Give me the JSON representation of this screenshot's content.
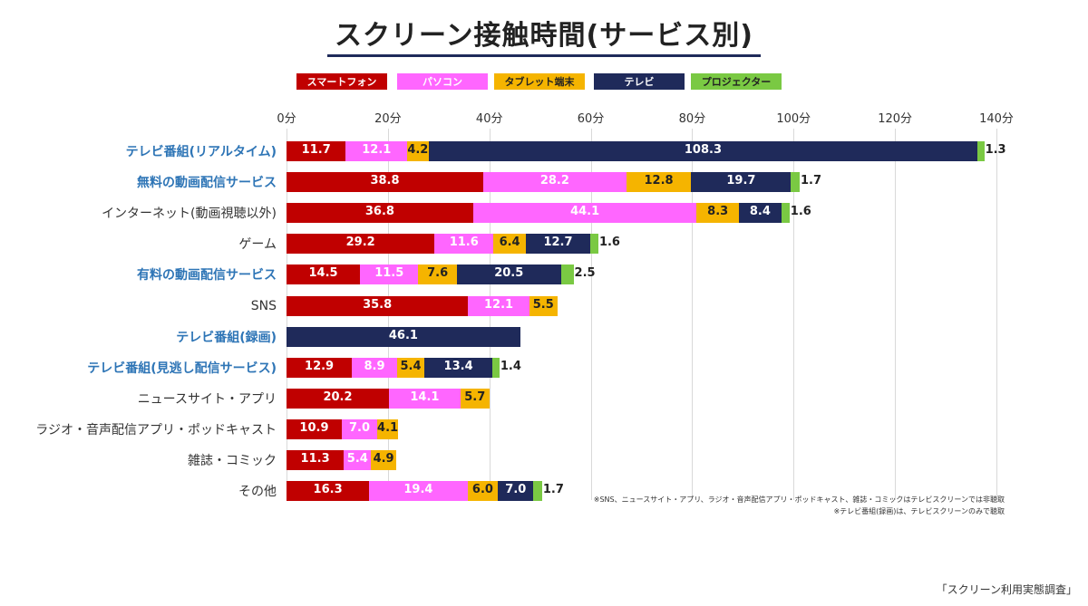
{
  "title": "スクリーン接触時間(サービス別)",
  "legend": [
    {
      "label": "スマートフォン",
      "color": "#c00000",
      "text_color": "#ffffff"
    },
    {
      "label": "パソコン",
      "color": "#ff66ff",
      "text_color": "#ffffff"
    },
    {
      "label": "タブレット端末",
      "color": "#f5b400",
      "text_color": "#222222"
    },
    {
      "label": "テレビ",
      "color": "#1f2a5a",
      "text_color": "#ffffff"
    },
    {
      "label": "プロジェクター",
      "color": "#7ac943",
      "text_color": "#222222"
    }
  ],
  "chart_data": {
    "type": "bar",
    "orientation": "horizontal",
    "stacked": true,
    "xlim": [
      0,
      140
    ],
    "x_ticks": [
      "0分",
      "20分",
      "40分",
      "60分",
      "80分",
      "100分",
      "120分",
      "140分"
    ],
    "grid": true,
    "categories": [
      "テレビ番組(リアルタイム)",
      "無料の動画配信サービス",
      "インターネット(動画視聴以外)",
      "ゲーム",
      "有料の動画配信サービス",
      "SNS",
      "テレビ番組(録画)",
      "テレビ番組(見逃し配信サービス)",
      "ニュースサイト・アプリ",
      "ラジオ・音声配信アプリ・ポッドキャスト",
      "雑誌・コミック",
      "その他"
    ],
    "highlighted": [
      true,
      true,
      false,
      false,
      true,
      false,
      true,
      true,
      false,
      false,
      false,
      false
    ],
    "series": [
      {
        "name": "スマートフォン",
        "values": [
          11.7,
          38.8,
          36.8,
          29.2,
          14.5,
          35.8,
          null,
          12.9,
          20.2,
          10.9,
          11.3,
          16.3
        ]
      },
      {
        "name": "パソコン",
        "values": [
          12.1,
          28.2,
          44.1,
          11.6,
          11.5,
          12.1,
          null,
          8.9,
          14.1,
          7.0,
          5.4,
          19.4
        ]
      },
      {
        "name": "タブレット端末",
        "values": [
          4.2,
          12.8,
          8.3,
          6.4,
          7.6,
          5.5,
          null,
          5.4,
          5.7,
          4.1,
          4.9,
          6.0
        ]
      },
      {
        "name": "テレビ",
        "values": [
          108.3,
          19.7,
          8.4,
          12.7,
          20.5,
          null,
          46.1,
          13.4,
          null,
          null,
          null,
          7.0
        ]
      },
      {
        "name": "プロジェクター",
        "values": [
          1.3,
          1.7,
          1.6,
          1.6,
          2.5,
          null,
          null,
          1.4,
          null,
          null,
          null,
          1.7
        ]
      }
    ]
  },
  "notes": [
    "※SNS、ニュースサイト・アプリ、ラジオ・音声配信アプリ・ポッドキャスト、雑誌・コミックはテレビスクリーンでは非聴取",
    "※テレビ番組(録画)は、テレビスクリーンのみで聴取"
  ],
  "source": "「スクリーン利用実態調査」"
}
